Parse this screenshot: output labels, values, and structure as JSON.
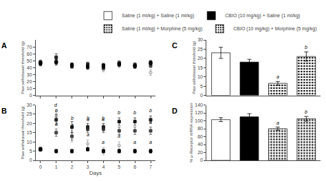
{
  "chart_data": [
    {
      "type": "scatter",
      "title": "A",
      "x": [
        0,
        1,
        2,
        3,
        4,
        5,
        6,
        7
      ],
      "xlim": [
        -0.3,
        7.3
      ],
      "xticks": [
        0,
        1,
        2,
        3,
        4,
        5,
        6,
        7
      ],
      "ylabel": "Paw withdrawal threshold (g)",
      "ylim": [
        0,
        80
      ],
      "yticks": [
        0,
        10,
        20,
        30,
        40,
        50,
        60,
        70
      ],
      "tick_labels": "y",
      "grid": false,
      "series": [
        {
          "color": "#999999",
          "marker": "circle-open",
          "values": [
            45,
            50,
            43,
            40,
            37,
            43,
            42,
            33
          ],
          "errors": [
            3,
            4,
            3,
            3,
            3,
            3,
            3,
            4
          ]
        },
        {
          "color": "#444444",
          "marker": "square",
          "values": [
            48,
            48,
            43,
            45,
            43,
            47,
            43,
            43
          ],
          "errors": [
            3,
            4,
            3,
            3,
            3,
            3,
            3,
            3
          ]
        },
        {
          "color": "#222222",
          "marker": "square",
          "values": [
            47,
            55,
            42,
            44,
            40,
            45,
            44,
            47
          ],
          "errors": [
            3,
            5,
            3,
            3,
            3,
            3,
            3,
            3
          ]
        },
        {
          "color": "#000000",
          "marker": "square",
          "values": [
            46,
            48,
            44,
            41,
            43,
            45,
            42,
            47
          ],
          "errors": [
            3,
            4,
            3,
            3,
            3,
            3,
            3,
            3
          ]
        }
      ]
    },
    {
      "type": "scatter",
      "title": "B",
      "x": [
        0,
        1,
        2,
        3,
        4,
        5,
        6,
        7
      ],
      "xlabel": "Days",
      "xlim": [
        -0.3,
        7.3
      ],
      "xticks": [
        0,
        1,
        2,
        3,
        4,
        5,
        6,
        7
      ],
      "ylabel": "Paw withdrawal threshold (g)",
      "ylim": [
        0,
        30
      ],
      "yticks": [
        0,
        5,
        10,
        15,
        20,
        25,
        30
      ],
      "grid": false,
      "series": [
        {
          "color": "#999999",
          "marker": "circle-open",
          "values": [
            6,
            24,
            13,
            9,
            5,
            8,
            5,
            5
          ],
          "errors": [
            1,
            3,
            3,
            2,
            2,
            2,
            1,
            1
          ]
        },
        {
          "color": "#444444",
          "marker": "square",
          "values": [
            6,
            15,
            13,
            17,
            17,
            16,
            16,
            16
          ],
          "errors": [
            1,
            2,
            2,
            2,
            2,
            2,
            2,
            2
          ]
        },
        {
          "color": "#222222",
          "marker": "square",
          "values": [
            6,
            22,
            18,
            18,
            18,
            21,
            21,
            22
          ],
          "errors": [
            1,
            3,
            3,
            2,
            2,
            2,
            2,
            2
          ]
        },
        {
          "color": "#000000",
          "marker": "square",
          "values": [
            6,
            5,
            5,
            6,
            5,
            5,
            5,
            5
          ],
          "errors": [
            1,
            1,
            1,
            1,
            1,
            1,
            1,
            1
          ]
        }
      ],
      "annotations": [
        {
          "x": 1,
          "y": 25,
          "text": "b"
        },
        {
          "x": 2,
          "y": 21,
          "text": "b"
        },
        {
          "x": 3,
          "y": 21,
          "text": "b"
        },
        {
          "x": 4,
          "y": 21,
          "text": "b"
        },
        {
          "x": 5,
          "y": 24,
          "text": "b"
        },
        {
          "x": 6,
          "y": 24,
          "text": "b"
        },
        {
          "x": 7,
          "y": 25,
          "text": "b"
        },
        {
          "x": 1,
          "y": 28,
          "text": "d"
        },
        {
          "x": 2,
          "y": 17,
          "text": "a"
        },
        {
          "x": 3,
          "y": 12,
          "text": "a"
        },
        {
          "x": 4,
          "y": 8,
          "text": "a"
        },
        {
          "x": 5,
          "y": 11,
          "text": "a"
        },
        {
          "x": 6,
          "y": 8,
          "text": "a"
        },
        {
          "x": 7,
          "y": 8,
          "text": "a"
        },
        {
          "x": 1,
          "y": 18,
          "text": "a"
        },
        {
          "x": 2,
          "y": 16,
          "text": "a"
        },
        {
          "x": 3,
          "y": 20,
          "text": "a"
        },
        {
          "x": 4,
          "y": 20,
          "text": "a"
        },
        {
          "x": 5,
          "y": 19,
          "text": "a"
        },
        {
          "x": 6,
          "y": 19,
          "text": "a"
        },
        {
          "x": 7,
          "y": 19,
          "text": "a"
        }
      ]
    },
    {
      "type": "bar",
      "title": "C",
      "categories": [
        null,
        null,
        null,
        null
      ],
      "ylabel": "Paw withdrawal threshold (g)",
      "ylim": [
        0,
        30
      ],
      "yticks": [
        0,
        5,
        10,
        15,
        20,
        25,
        30
      ],
      "tick_labels": "y",
      "grid": false,
      "legend": "upper right",
      "series": [
        {
          "name": "Saline (1 ml/kg) + Saline (1 ml/kg)",
          "color": "white",
          "values": [
            23,
            null,
            null,
            null
          ],
          "errors": [
            3,
            null,
            null,
            null
          ]
        },
        {
          "name": "CBIO (10 mg/kg) + Saline (1 ml/kg)",
          "color": "black",
          "values": [
            null,
            18,
            null,
            null
          ],
          "errors": [
            null,
            1.5,
            null,
            null
          ]
        },
        {
          "name": "Saline (1 ml/kg) + Morphine (5 mg/kg)",
          "color": "#bbbbbb",
          "values": [
            null,
            null,
            6.5,
            null
          ],
          "errors": [
            null,
            null,
            1,
            null
          ]
        },
        {
          "name": "CBIO (10 mg/kg) + Morphine (5 mg/kg)",
          "color": "#888888",
          "values": [
            null,
            null,
            null,
            21
          ],
          "errors": [
            null,
            null,
            null,
            2.5
          ]
        }
      ],
      "annotations": [
        {
          "x": 2,
          "y": 8,
          "text": "a"
        },
        {
          "x": 3,
          "y": 24,
          "text": "b"
        }
      ]
    },
    {
      "type": "bar",
      "title": "D",
      "categories": [
        null,
        null,
        null,
        null
      ],
      "ylabel": "% μ-Receptor mRNA expression",
      "ylim": [
        0,
        140
      ],
      "yticks": [
        0,
        20,
        40,
        60,
        80,
        100,
        120,
        140
      ],
      "tick_labels": "y",
      "grid": false,
      "series": [
        {
          "name": "Saline (1 ml/kg) + Saline (1 ml/kg)",
          "color": "white",
          "values": [
            103,
            null,
            null,
            null
          ],
          "errors": [
            5,
            null,
            null,
            null
          ]
        },
        {
          "name": "CBIO (10 mg/kg) + Saline (1 ml/kg)",
          "color": "black",
          "values": [
            null,
            110,
            null,
            null
          ],
          "errors": [
            null,
            8,
            null,
            null
          ]
        },
        {
          "name": "Saline (1 ml/kg) + Morphine (5 mg/kg)",
          "color": "#bbbbbb",
          "values": [
            null,
            null,
            80,
            null
          ],
          "errors": [
            null,
            null,
            4,
            null
          ]
        },
        {
          "name": "CBIO (10 mg/kg) + Morphine (5 mg/kg)",
          "color": "#888888",
          "values": [
            null,
            null,
            null,
            105
          ],
          "errors": [
            null,
            null,
            null,
            6
          ]
        }
      ],
      "annotations": [
        {
          "x": 2,
          "y": 86,
          "text": "a"
        },
        {
          "x": 3,
          "y": 113,
          "text": "b"
        }
      ]
    }
  ]
}
